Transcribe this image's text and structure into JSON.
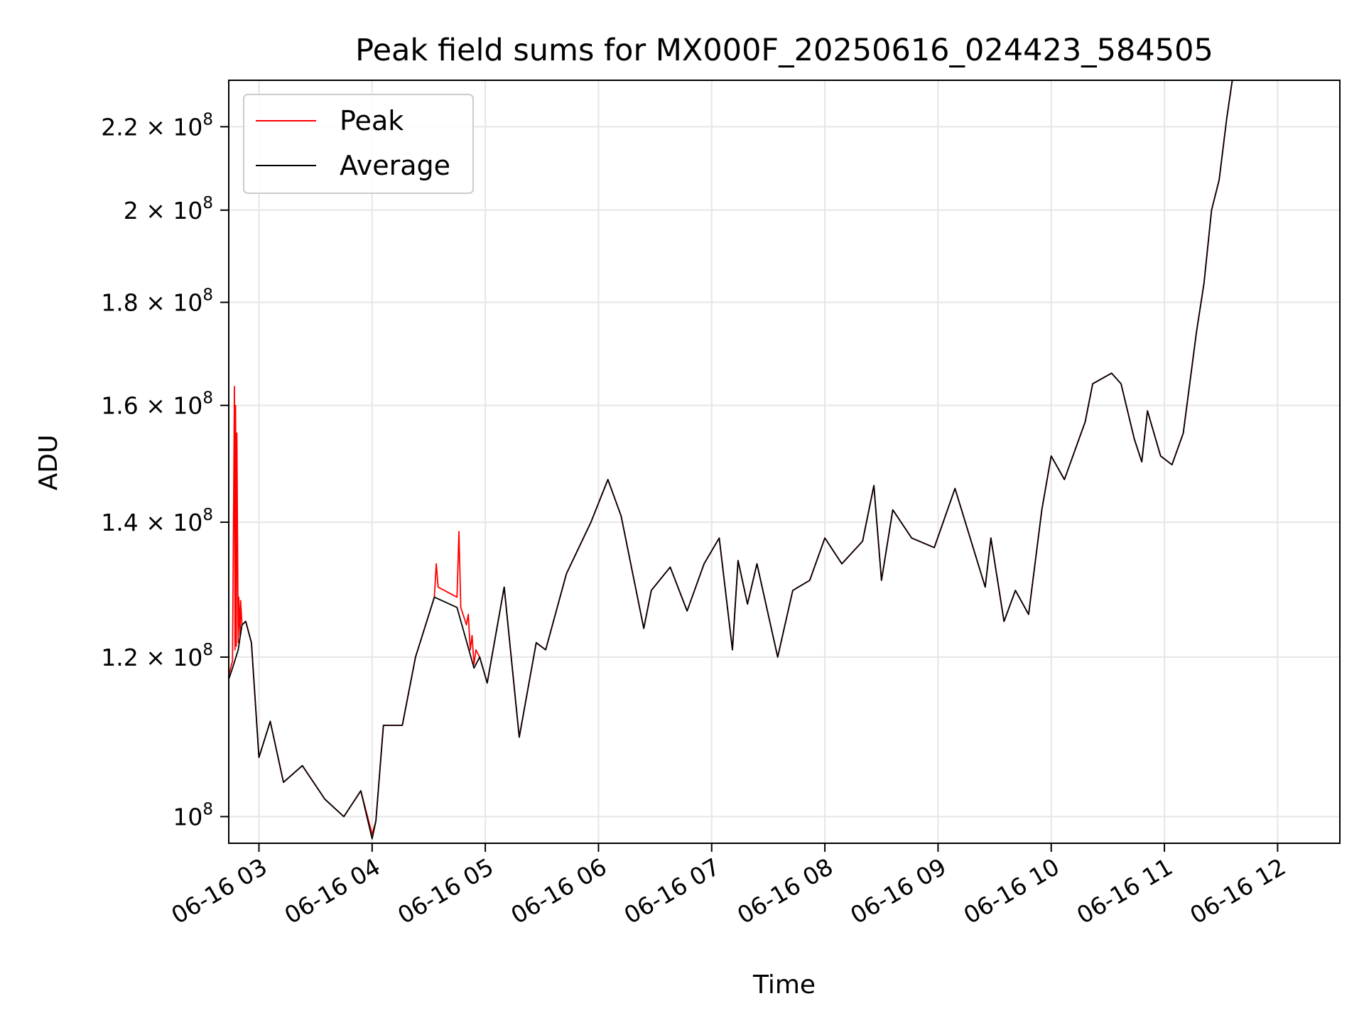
{
  "chart_data": {
    "type": "line",
    "title": "Peak field sums for MX000F_20250616_024423_584505",
    "xlabel": "Time",
    "ylabel": "ADU",
    "x_scale": "time",
    "y_scale": "log",
    "xlim": [
      "2025-06-16 02:44",
      "2025-06-16 12:33"
    ],
    "ylim": [
      97000000,
      232000000
    ],
    "x_ticks": [
      {
        "value": "2025-06-16 03:00",
        "label": "06-16 03"
      },
      {
        "value": "2025-06-16 04:00",
        "label": "06-16 04"
      },
      {
        "value": "2025-06-16 05:00",
        "label": "06-16 05"
      },
      {
        "value": "2025-06-16 06:00",
        "label": "06-16 06"
      },
      {
        "value": "2025-06-16 07:00",
        "label": "06-16 07"
      },
      {
        "value": "2025-06-16 08:00",
        "label": "06-16 08"
      },
      {
        "value": "2025-06-16 09:00",
        "label": "06-16 09"
      },
      {
        "value": "2025-06-16 10:00",
        "label": "06-16 10"
      },
      {
        "value": "2025-06-16 11:00",
        "label": "06-16 11"
      },
      {
        "value": "2025-06-16 12:00",
        "label": "06-16 12"
      }
    ],
    "y_ticks": [
      {
        "value": 100000000,
        "base": "10",
        "exp": "8"
      },
      {
        "value": 120000000,
        "base": "1.2 × 10",
        "exp": "8"
      },
      {
        "value": 140000000,
        "base": "1.4 × 10",
        "exp": "8"
      },
      {
        "value": 160000000,
        "base": "1.6 × 10",
        "exp": "8"
      },
      {
        "value": 180000000,
        "base": "1.8 × 10",
        "exp": "8"
      },
      {
        "value": 200000000,
        "base": "2 × 10",
        "exp": "8"
      },
      {
        "value": 220000000,
        "base": "2.2 × 10",
        "exp": "8"
      }
    ],
    "grid": true,
    "legend_position": "top-left",
    "series": [
      {
        "name": "Peak",
        "color": "#ff0000",
        "points": [
          [
            "2025-06-16 02:44",
            117.5
          ],
          [
            "2025-06-16 02:46",
            119.5
          ],
          [
            "2025-06-16 02:47",
            163.5
          ],
          [
            "2025-06-16 02:47",
            121.0
          ],
          [
            "2025-06-16 02:47",
            160.0
          ],
          [
            "2025-06-16 02:48",
            121.5
          ],
          [
            "2025-06-16 02:48",
            155.0
          ],
          [
            "2025-06-16 02:49",
            122.0
          ],
          [
            "2025-06-16 02:49",
            128.5
          ],
          [
            "2025-06-16 02:50",
            123.0
          ],
          [
            "2025-06-16 02:50",
            128.0
          ],
          [
            "2025-06-16 02:51",
            124.5
          ],
          [
            "2025-06-16 02:53",
            125.0
          ],
          [
            "2025-06-16 02:56",
            122.0
          ],
          [
            "2025-06-16 03:00",
            107.0
          ],
          [
            "2025-06-16 03:06",
            111.5
          ],
          [
            "2025-06-16 03:13",
            104.0
          ],
          [
            "2025-06-16 03:23",
            106.0
          ],
          [
            "2025-06-16 03:35",
            102.0
          ],
          [
            "2025-06-16 03:45",
            100.0
          ],
          [
            "2025-06-16 03:54",
            103.0
          ],
          [
            "2025-06-16 04:00",
            98.0
          ],
          [
            "2025-06-16 04:02",
            99.5
          ],
          [
            "2025-06-16 04:06",
            111.0
          ],
          [
            "2025-06-16 04:16",
            111.0
          ],
          [
            "2025-06-16 04:23",
            120.0
          ],
          [
            "2025-06-16 04:33",
            128.5
          ],
          [
            "2025-06-16 04:34",
            133.5
          ],
          [
            "2025-06-16 04:35",
            130.0
          ],
          [
            "2025-06-16 04:45",
            128.5
          ],
          [
            "2025-06-16 04:46",
            138.5
          ],
          [
            "2025-06-16 04:47",
            127.0
          ],
          [
            "2025-06-16 04:50",
            124.5
          ],
          [
            "2025-06-16 04:51",
            126.0
          ],
          [
            "2025-06-16 04:52",
            121.0
          ],
          [
            "2025-06-16 04:53",
            123.0
          ],
          [
            "2025-06-16 04:54",
            119.0
          ],
          [
            "2025-06-16 04:55",
            121.0
          ],
          [
            "2025-06-16 04:57",
            120.0
          ],
          [
            "2025-06-16 05:01",
            116.5
          ],
          [
            "2025-06-16 05:10",
            130.0
          ],
          [
            "2025-06-16 05:18",
            109.5
          ],
          [
            "2025-06-16 05:27",
            122.0
          ],
          [
            "2025-06-16 05:32",
            121.0
          ],
          [
            "2025-06-16 05:43",
            132.0
          ],
          [
            "2025-06-16 05:56",
            140.0
          ],
          [
            "2025-06-16 06:05",
            147.0
          ],
          [
            "2025-06-16 06:12",
            141.0
          ],
          [
            "2025-06-16 06:24",
            124.0
          ],
          [
            "2025-06-16 06:28",
            129.5
          ],
          [
            "2025-06-16 06:38",
            133.0
          ],
          [
            "2025-06-16 06:47",
            126.5
          ],
          [
            "2025-06-16 06:56",
            133.5
          ],
          [
            "2025-06-16 07:04",
            137.5
          ],
          [
            "2025-06-16 07:11",
            121.0
          ],
          [
            "2025-06-16 07:14",
            134.0
          ],
          [
            "2025-06-16 07:19",
            127.5
          ],
          [
            "2025-06-16 07:24",
            133.5
          ],
          [
            "2025-06-16 07:35",
            120.0
          ],
          [
            "2025-06-16 07:43",
            129.5
          ],
          [
            "2025-06-16 07:52",
            131.0
          ],
          [
            "2025-06-16 08:00",
            137.5
          ],
          [
            "2025-06-16 08:09",
            133.5
          ],
          [
            "2025-06-16 08:20",
            137.0
          ],
          [
            "2025-06-16 08:26",
            146.0
          ],
          [
            "2025-06-16 08:30",
            131.0
          ],
          [
            "2025-06-16 08:36",
            142.0
          ],
          [
            "2025-06-16 08:46",
            137.5
          ],
          [
            "2025-06-16 08:58",
            136.0
          ],
          [
            "2025-06-16 09:09",
            145.5
          ],
          [
            "2025-06-16 09:25",
            130.0
          ],
          [
            "2025-06-16 09:28",
            137.5
          ],
          [
            "2025-06-16 09:35",
            125.0
          ],
          [
            "2025-06-16 09:41",
            129.5
          ],
          [
            "2025-06-16 09:48",
            126.0
          ],
          [
            "2025-06-16 09:55",
            142.0
          ],
          [
            "2025-06-16 10:00",
            151.0
          ],
          [
            "2025-06-16 10:07",
            147.0
          ],
          [
            "2025-06-16 10:18",
            157.0
          ],
          [
            "2025-06-16 10:22",
            164.0
          ],
          [
            "2025-06-16 10:32",
            166.0
          ],
          [
            "2025-06-16 10:37",
            164.0
          ],
          [
            "2025-06-16 10:44",
            154.0
          ],
          [
            "2025-06-16 10:48",
            150.0
          ],
          [
            "2025-06-16 10:51",
            159.0
          ],
          [
            "2025-06-16 10:58",
            151.0
          ],
          [
            "2025-06-16 11:04",
            149.5
          ],
          [
            "2025-06-16 11:10",
            155.0
          ],
          [
            "2025-06-16 11:17",
            174.0
          ],
          [
            "2025-06-16 11:21",
            184.0
          ],
          [
            "2025-06-16 11:25",
            200.0
          ],
          [
            "2025-06-16 11:29",
            207.0
          ],
          [
            "2025-06-16 11:33",
            222.0
          ],
          [
            "2025-06-16 11:36",
            232.0
          ]
        ]
      },
      {
        "name": "Average",
        "color": "#000000",
        "points": [
          [
            "2025-06-16 02:44",
            117.0
          ],
          [
            "2025-06-16 02:46",
            118.5
          ],
          [
            "2025-06-16 02:49",
            121.0
          ],
          [
            "2025-06-16 02:51",
            124.5
          ],
          [
            "2025-06-16 02:53",
            125.0
          ],
          [
            "2025-06-16 02:56",
            122.0
          ],
          [
            "2025-06-16 03:00",
            107.0
          ],
          [
            "2025-06-16 03:06",
            111.5
          ],
          [
            "2025-06-16 03:13",
            104.0
          ],
          [
            "2025-06-16 03:23",
            106.0
          ],
          [
            "2025-06-16 03:35",
            102.0
          ],
          [
            "2025-06-16 03:45",
            100.0
          ],
          [
            "2025-06-16 03:54",
            103.0
          ],
          [
            "2025-06-16 04:00",
            97.5
          ],
          [
            "2025-06-16 04:02",
            99.5
          ],
          [
            "2025-06-16 04:06",
            111.0
          ],
          [
            "2025-06-16 04:16",
            111.0
          ],
          [
            "2025-06-16 04:23",
            120.0
          ],
          [
            "2025-06-16 04:33",
            128.5
          ],
          [
            "2025-06-16 04:45",
            127.0
          ],
          [
            "2025-06-16 04:54",
            118.5
          ],
          [
            "2025-06-16 04:57",
            120.0
          ],
          [
            "2025-06-16 05:01",
            116.5
          ],
          [
            "2025-06-16 05:10",
            130.0
          ],
          [
            "2025-06-16 05:18",
            109.5
          ],
          [
            "2025-06-16 05:27",
            122.0
          ],
          [
            "2025-06-16 05:32",
            121.0
          ],
          [
            "2025-06-16 05:43",
            132.0
          ],
          [
            "2025-06-16 05:56",
            140.0
          ],
          [
            "2025-06-16 06:05",
            147.0
          ],
          [
            "2025-06-16 06:12",
            141.0
          ],
          [
            "2025-06-16 06:24",
            124.0
          ],
          [
            "2025-06-16 06:28",
            129.5
          ],
          [
            "2025-06-16 06:38",
            133.0
          ],
          [
            "2025-06-16 06:47",
            126.5
          ],
          [
            "2025-06-16 06:56",
            133.5
          ],
          [
            "2025-06-16 07:04",
            137.5
          ],
          [
            "2025-06-16 07:11",
            121.0
          ],
          [
            "2025-06-16 07:14",
            134.0
          ],
          [
            "2025-06-16 07:19",
            127.5
          ],
          [
            "2025-06-16 07:24",
            133.5
          ],
          [
            "2025-06-16 07:35",
            120.0
          ],
          [
            "2025-06-16 07:43",
            129.5
          ],
          [
            "2025-06-16 07:52",
            131.0
          ],
          [
            "2025-06-16 08:00",
            137.5
          ],
          [
            "2025-06-16 08:09",
            133.5
          ],
          [
            "2025-06-16 08:20",
            137.0
          ],
          [
            "2025-06-16 08:26",
            146.0
          ],
          [
            "2025-06-16 08:30",
            131.0
          ],
          [
            "2025-06-16 08:36",
            142.0
          ],
          [
            "2025-06-16 08:46",
            137.5
          ],
          [
            "2025-06-16 08:58",
            136.0
          ],
          [
            "2025-06-16 09:09",
            145.5
          ],
          [
            "2025-06-16 09:25",
            130.0
          ],
          [
            "2025-06-16 09:28",
            137.5
          ],
          [
            "2025-06-16 09:35",
            125.0
          ],
          [
            "2025-06-16 09:41",
            129.5
          ],
          [
            "2025-06-16 09:48",
            126.0
          ],
          [
            "2025-06-16 09:55",
            142.0
          ],
          [
            "2025-06-16 10:00",
            151.0
          ],
          [
            "2025-06-16 10:07",
            147.0
          ],
          [
            "2025-06-16 10:18",
            157.0
          ],
          [
            "2025-06-16 10:22",
            164.0
          ],
          [
            "2025-06-16 10:32",
            166.0
          ],
          [
            "2025-06-16 10:37",
            164.0
          ],
          [
            "2025-06-16 10:44",
            154.0
          ],
          [
            "2025-06-16 10:48",
            150.0
          ],
          [
            "2025-06-16 10:51",
            159.0
          ],
          [
            "2025-06-16 10:58",
            151.0
          ],
          [
            "2025-06-16 11:04",
            149.5
          ],
          [
            "2025-06-16 11:10",
            155.0
          ],
          [
            "2025-06-16 11:17",
            174.0
          ],
          [
            "2025-06-16 11:21",
            184.0
          ],
          [
            "2025-06-16 11:25",
            200.0
          ],
          [
            "2025-06-16 11:29",
            207.0
          ],
          [
            "2025-06-16 11:33",
            222.0
          ],
          [
            "2025-06-16 11:36",
            232.0
          ]
        ]
      }
    ],
    "y_unit_note": "series point y values are in units of 10^6 ADU"
  }
}
